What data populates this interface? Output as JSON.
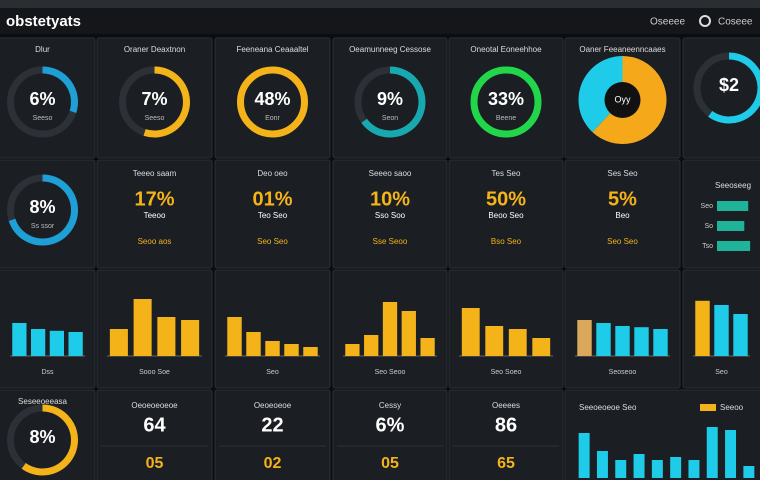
{
  "header": {
    "title": "obstetyats",
    "links": [
      "Oseeee",
      "Coseee"
    ]
  },
  "rows": [
    {
      "items": [
        {
          "type": "gauge",
          "label": "Dlur",
          "value": "6%",
          "sub": "Seeso",
          "fill": 30,
          "color": "#1e9fd6"
        },
        {
          "type": "gauge",
          "label": "Oraner Deaxtnon",
          "value": "7%",
          "sub": "Seeso",
          "fill": 55,
          "color": "#f5b31a"
        },
        {
          "type": "gauge",
          "label": "Feeneana Ceaaaltel",
          "value": "48%",
          "sub": "Eonr",
          "fill": 100,
          "color": "#f5b31a"
        },
        {
          "type": "gauge",
          "label": "Oeamunneeg Cessose",
          "value": "9%",
          "sub": "Seon",
          "fill": 65,
          "color": "#18a8b0"
        },
        {
          "type": "gauge",
          "label": "Oneotal Eoneehhoe",
          "value": "33%",
          "sub": "Beene",
          "fill": 100,
          "color": "#22d64a"
        },
        {
          "type": "pie",
          "label": "Oaner Feeaneenncaaes",
          "value": "Oyy",
          "values": [
            62,
            38
          ],
          "colors": [
            "#f5a81a",
            "#1ecbe8"
          ]
        },
        {
          "type": "gauge",
          "value": "$2",
          "fill": 60,
          "color": "#1ecbe8"
        }
      ]
    },
    {
      "items": [
        {
          "type": "gauge",
          "value": "8%",
          "sub": "Ss ssor",
          "fill": 70,
          "color": "#1e9fd6"
        },
        {
          "type": "kpi",
          "label": "Teeeo saam",
          "value": "17%",
          "note": "Teeoo",
          "foot": "Seoo aos"
        },
        {
          "type": "kpi",
          "label": "Deo oeo",
          "value": "01%",
          "note": "Teo Seo",
          "foot": "Seo Seo"
        },
        {
          "type": "kpi",
          "label": "Seeeo saoo",
          "value": "10%",
          "note": "Sso Soo",
          "foot": "Sse Seoo"
        },
        {
          "type": "kpi",
          "label": "Tes Seo",
          "value": "50%",
          "note": "Beoo Seo",
          "foot": "Bso Seo"
        },
        {
          "type": "kpi",
          "label": "Ses Seo",
          "value": "5%",
          "note": "Beo",
          "foot": "Seo Seo"
        },
        {
          "type": "hbar",
          "label": "Seeoseeg",
          "bars": [
            {
              "label": "Seo",
              "value": 80
            },
            {
              "label": "So",
              "value": 70
            },
            {
              "label": "Tso",
              "value": 85
            }
          ],
          "color": "#1fb39a"
        }
      ]
    },
    {
      "items": [
        {
          "type": "bars",
          "label": "Dss",
          "values": [
            55,
            45,
            42,
            40
          ],
          "color": "#1ecbe8"
        },
        {
          "type": "bars",
          "label": "Sooo Soe",
          "values": [
            45,
            95,
            65,
            60
          ],
          "color": "#f5b31a"
        },
        {
          "type": "bars",
          "label": "Seo",
          "values": [
            65,
            40,
            25,
            20,
            15
          ],
          "color": "#f5b31a"
        },
        {
          "type": "bars",
          "label": "Seo Seoo",
          "values": [
            20,
            35,
            90,
            75,
            30
          ],
          "color": "#f5b31a"
        },
        {
          "type": "bars",
          "label": "Seo Soeo",
          "values": [
            80,
            50,
            45,
            30
          ],
          "color": "#f5b31a"
        },
        {
          "type": "bars",
          "label": "Seoseoo",
          "values": [
            60,
            55,
            50,
            48,
            45
          ],
          "color": "#1ecbe8",
          "colors": [
            "#d9a85a",
            "#1ecbe8",
            "#1ecbe8",
            "#1ecbe8",
            "#1ecbe8"
          ]
        },
        {
          "type": "bars",
          "label": "Seo",
          "values": [
            92,
            85,
            70
          ],
          "color": "#1ecbe8",
          "colors": [
            "#f5b31a",
            "#1ecbe8",
            "#1ecbe8"
          ]
        }
      ]
    },
    {
      "items": [
        {
          "type": "gauge",
          "label": "Seseeoeeasa",
          "value": "8%",
          "fill": 60,
          "color": "#f5b31a"
        },
        {
          "type": "counter",
          "label": "Oeoeoeoeoe",
          "value": "64",
          "sub": "05"
        },
        {
          "type": "counter",
          "label": "Oeoeoeoe",
          "value": "22",
          "sub": "02"
        },
        {
          "type": "counter",
          "label": "Cessy",
          "value": "6%",
          "sub": "05"
        },
        {
          "type": "counter",
          "label": "Oeeees",
          "value": "86",
          "sub": "65"
        },
        {
          "type": "column",
          "label": "Seeoeoeoe Seo",
          "legend": "Seeoo",
          "values": [
            75,
            45,
            30,
            40,
            30,
            35,
            30,
            85,
            80,
            20
          ],
          "color": "#1ecbe8",
          "legend_color": "#f5b31a"
        }
      ]
    }
  ]
}
